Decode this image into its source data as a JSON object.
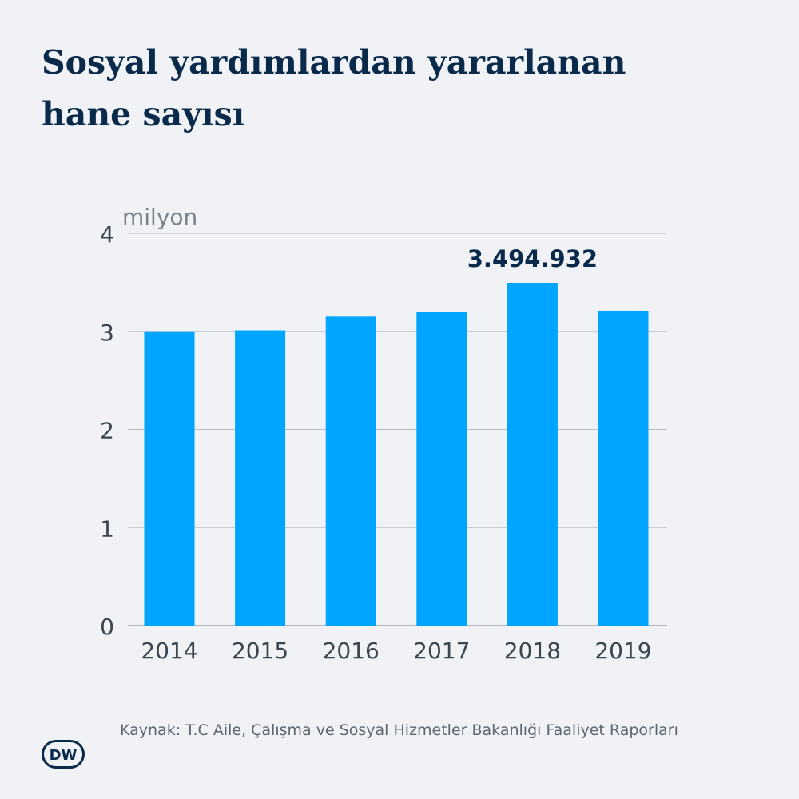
{
  "title": {
    "line1": "Sosyal yardımlardan yararlanan",
    "line2": "hane sayısı"
  },
  "chart_data": {
    "type": "bar",
    "unit_label": "milyon",
    "categories": [
      "2014",
      "2015",
      "2016",
      "2017",
      "2018",
      "2019"
    ],
    "values": [
      3.0,
      3.01,
      3.15,
      3.2,
      3.494932,
      3.21
    ],
    "highlight": {
      "index": 4,
      "label": "3.494.932"
    },
    "yticks": [
      "0",
      "1",
      "2",
      "3",
      "4"
    ],
    "ylim": [
      0,
      4
    ],
    "grid": true,
    "bar_color": "#00a5ff"
  },
  "source": "Kaynak: T.C Aile, Çalışma ve Sosyal Hizmetler Bakanlığı Faaliyet Raporları",
  "logo": {
    "icon": "dw-logo-icon",
    "text": "DW"
  },
  "colors": {
    "background": "#f0f2f5",
    "title": "#0a2a4c",
    "axis_text": "#3c4650",
    "grid": "#b9bec5"
  }
}
